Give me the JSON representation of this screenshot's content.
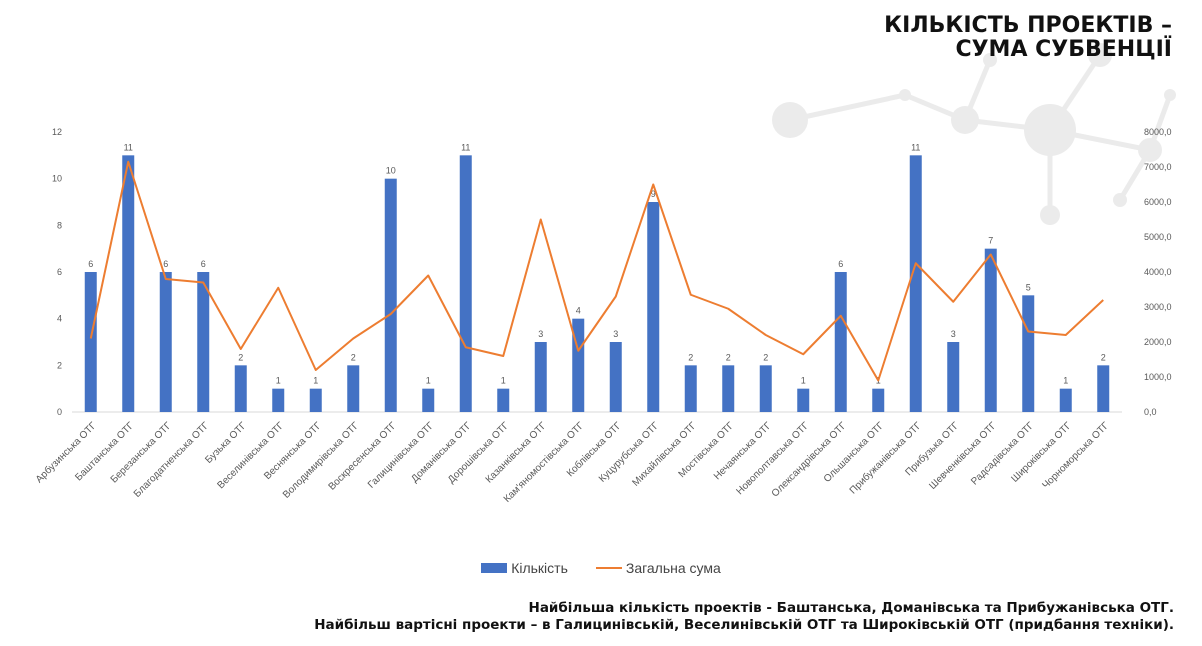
{
  "title": {
    "line1": "КІЛЬКІСТЬ ПРОЕКТІВ –",
    "line2": "СУМА СУБВЕНЦІЇ"
  },
  "legend": {
    "bar_label": "Кількість",
    "line_label": "Загальна сума"
  },
  "footer": {
    "line1": "Найбільша кількість проектів -  Баштанська, Доманівська та Прибужанівська ОТГ.",
    "line2": "Найбільш вартісні проекти – в Галицинівській, Веселинівській ОТГ та Широківській ОТГ (придбання техніки)."
  },
  "colors": {
    "bar": "#4472c4",
    "line": "#ed7d31",
    "axis_text": "#595959",
    "decoration": "#ebebeb"
  },
  "chart_data": {
    "type": "bar",
    "categories": [
      "Арбузинська ОТГ",
      "Баштанська ОТГ",
      "Березанська ОТГ",
      "Благодатненська ОТГ",
      "Бузька ОТГ",
      "Веселинівська ОТГ",
      "Веснянська ОТГ",
      "Володимирівська ОТГ",
      "Воскресенська ОТГ",
      "Галицинівська ОТГ",
      "Доманівська ОТГ",
      "Дорошівська ОТГ",
      "Казанківська ОТГ",
      "Кам'яномостівська ОТГ",
      "Коблівська ОТГ",
      "Куцурубська ОТГ",
      "Михайлівська ОТГ",
      "Мостівська ОТГ",
      "Нечаянська ОТГ",
      "Новополтавська ОТГ",
      "Олександрівська ОТГ",
      "Ольшанська ОТГ",
      "Прибужанівська ОТГ",
      "Прибузька ОТГ",
      "Шевченківська ОТГ",
      "Радсадівська ОТГ",
      "Широківська ОТГ",
      "Чорноморська ОТГ"
    ],
    "series": [
      {
        "name": "Кількість",
        "type": "bar",
        "axis": "left",
        "values": [
          6,
          11,
          6,
          6,
          2,
          1,
          1,
          2,
          10,
          1,
          11,
          1,
          3,
          4,
          3,
          9,
          2,
          2,
          2,
          1,
          6,
          1,
          11,
          3,
          7,
          5,
          1,
          2
        ]
      },
      {
        "name": "Загальна сума",
        "type": "line",
        "axis": "right",
        "values": [
          2100,
          7150,
          3800,
          3700,
          1800,
          3550,
          1200,
          2100,
          2800,
          3900,
          1850,
          1600,
          5500,
          1750,
          3300,
          6500,
          3350,
          2950,
          2200,
          1650,
          2750,
          900,
          4250,
          3150,
          4500,
          2300,
          2200,
          3200
        ]
      }
    ],
    "y_left": {
      "min": 0,
      "max": 12,
      "ticks": [
        "0",
        "2",
        "4",
        "6",
        "8",
        "10",
        "12"
      ]
    },
    "y_right": {
      "min": 0,
      "max": 8000,
      "ticks": [
        "0,0",
        "1000,0",
        "2000,0",
        "3000,0",
        "4000,0",
        "5000,0",
        "6000,0",
        "7000,0",
        "8000,0"
      ]
    },
    "data_labels": "bars",
    "grid": false,
    "legend_position": "bottom"
  }
}
